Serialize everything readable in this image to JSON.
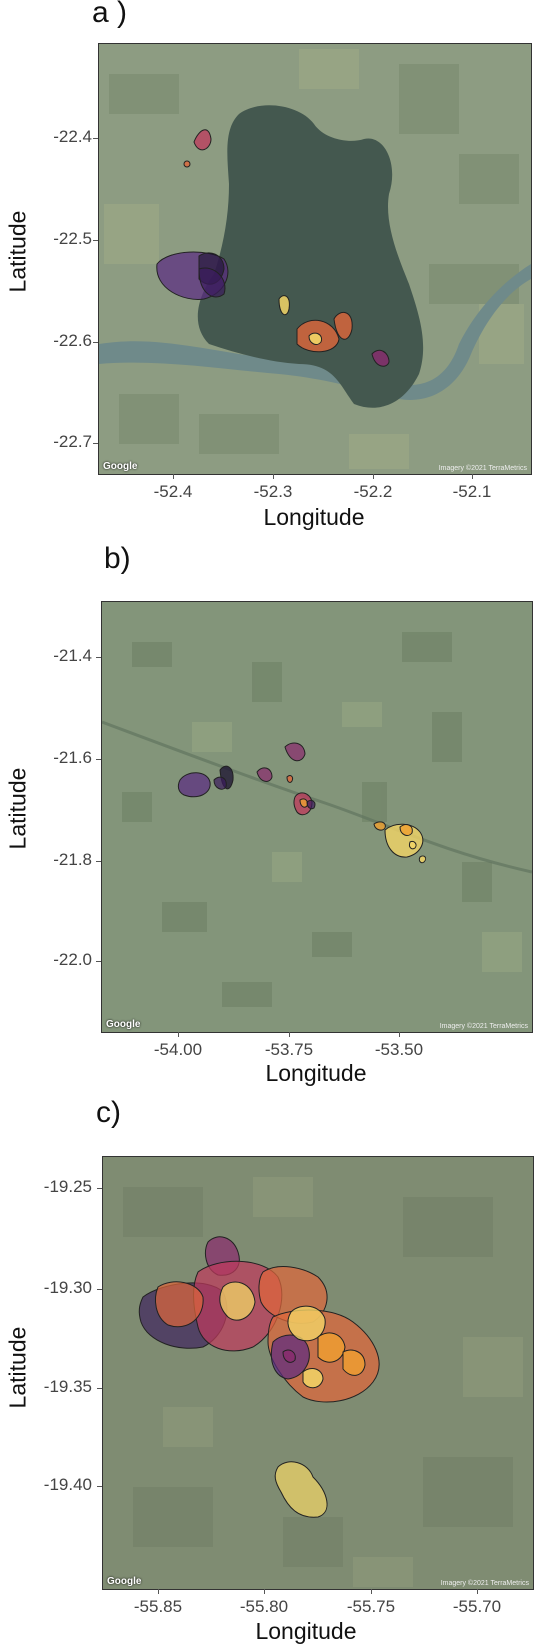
{
  "panels": [
    {
      "label": "a )",
      "xlabel": "Longitude",
      "ylabel": "Latitude",
      "xticks": [
        "-52.4",
        "-52.3",
        "-52.2",
        "-52.1"
      ],
      "yticks": [
        "-22.4",
        "-22.5",
        "-22.6",
        "-22.7"
      ],
      "google": "Google",
      "imagery": "Imagery ©2021 TerraMetrics"
    },
    {
      "label": "b)",
      "xlabel": "Longitude",
      "ylabel": "Latitude",
      "xticks": [
        "-54.00",
        "-53.75",
        "-53.50"
      ],
      "yticks": [
        "-21.4",
        "-21.6",
        "-21.8",
        "-22.0"
      ],
      "google": "Google",
      "imagery": "Imagery ©2021 TerraMetrics"
    },
    {
      "label": "c)",
      "xlabel": "Longitude",
      "ylabel": "Latitude",
      "xticks": [
        "-55.85",
        "-55.80",
        "-55.75",
        "-55.70"
      ],
      "yticks": [
        "-19.25",
        "-19.30",
        "-19.35",
        "-19.40"
      ],
      "google": "Google",
      "imagery": "Imagery ©2021 TerraMetrics"
    }
  ],
  "colors": {
    "satellite_a": "#8a9a80",
    "reservoir": "#3f5550",
    "river": "#6f8a8a",
    "satellite_b": "#7f9276",
    "satellite_c": "#7e8a70",
    "palette": [
      "#1a1030",
      "#3b1b5c",
      "#5a2a82",
      "#8a2a6e",
      "#c0395c",
      "#e0663a",
      "#f0a030",
      "#f2d566"
    ]
  }
}
